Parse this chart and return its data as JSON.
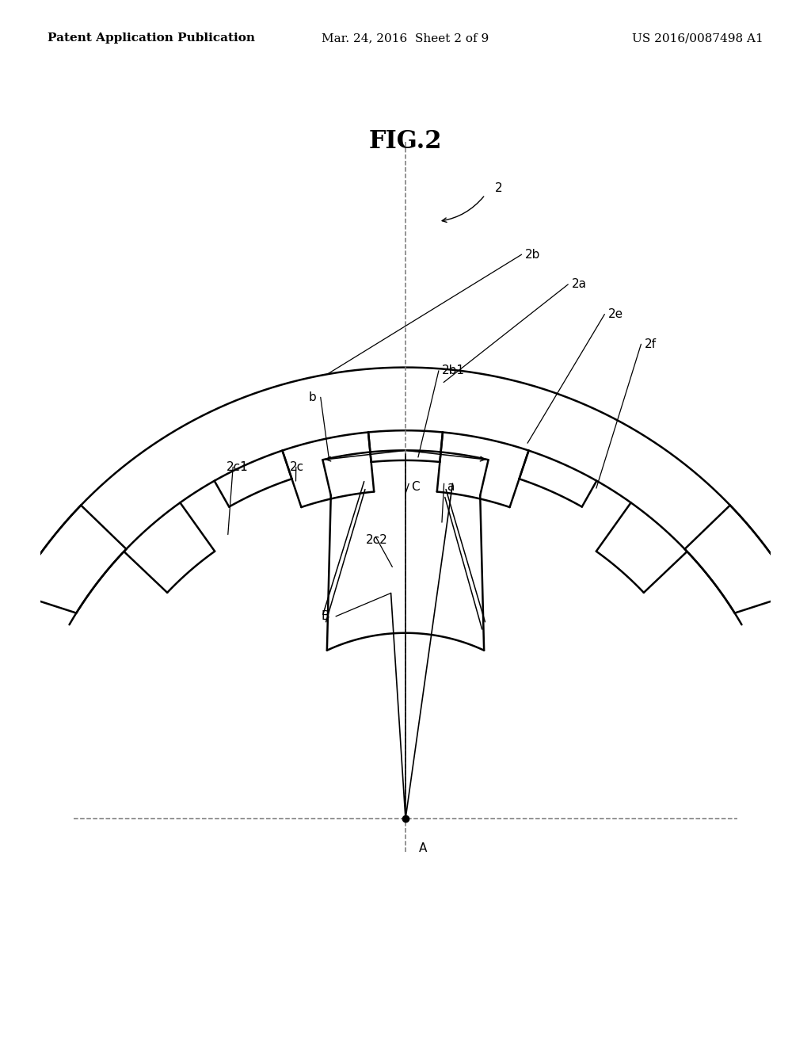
{
  "title": "FIG.2",
  "header_left": "Patent Application Publication",
  "header_center": "Mar. 24, 2016  Sheet 2 of 9",
  "header_right": "US 2016/0087498 A1",
  "bg_color": "#ffffff",
  "line_color": "#000000",
  "header_fontsize": 11,
  "fig_label_fontsize": 22,
  "label_fontsize": 11,
  "lw_main": 1.8,
  "lw_thin": 1.2,
  "lw_leader": 0.9
}
